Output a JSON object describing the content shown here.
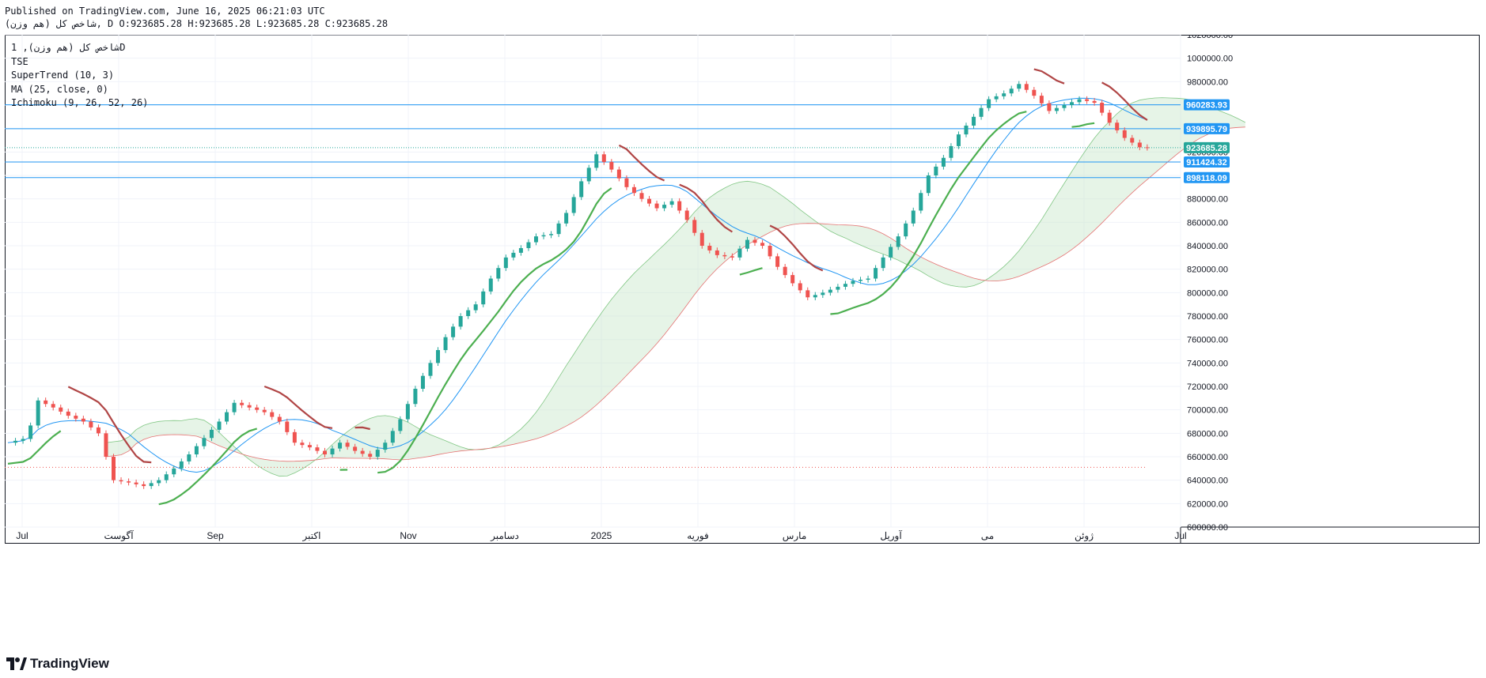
{
  "header": {
    "line1": "Published on TradingView.com, June 16, 2025 06:21:03 UTC",
    "line2": "شاخص کل (هم وزن), D O:923685.28 H:923685.28 L:923685.28 C:923685.28"
  },
  "legend": {
    "symbol": "شاخص کل (هم وزن), 1D",
    "exchange": "TSE",
    "indicator_1": "SuperTrend (10, 3)",
    "indicator_2": "MA (25, close, 0)",
    "indicator_3": "Ichimoku (9, 26, 52, 26)"
  },
  "footer": {
    "brand": "TradingView"
  },
  "colors": {
    "up": "#26a69a",
    "down": "#ef5350",
    "supertrend_up": "#4caf50",
    "supertrend_down": "#b04545",
    "ma": "#2196f3",
    "hline": "#2196f3",
    "cloud_bull": "#c8e6c9",
    "cloud_bear": "#ffcdd2",
    "current_price": "#26a69a"
  },
  "chart_data": {
    "type": "candlestick",
    "y_axis_ticks": [
      "1020000.00",
      "1000000.00",
      "980000.00",
      "960000.00",
      "940000.00",
      "920000.00",
      "900000.00",
      "880000.00",
      "860000.00",
      "840000.00",
      "820000.00",
      "800000.00",
      "780000.00",
      "760000.00",
      "740000.00",
      "720000.00",
      "700000.00",
      "680000.00",
      "660000.00",
      "640000.00",
      "620000.00",
      "600000.00"
    ],
    "ylim": [
      600000,
      1020000
    ],
    "x_axis_labels": [
      "Jul",
      "آگوست",
      "Sep",
      "اکتبر",
      "Nov",
      "دسامبر",
      "2025",
      "فوریه",
      "مارس",
      "آوریل",
      "می",
      "ژوئن",
      "Jul"
    ],
    "horizontal_lines": [
      {
        "value": 960283.93,
        "label": "960283.93"
      },
      {
        "value": 939895.79,
        "label": "939895.79"
      },
      {
        "value": 911424.32,
        "label": "911424.32"
      },
      {
        "value": 898118.09,
        "label": "898118.09"
      }
    ],
    "current_price": {
      "value": 923685.28,
      "label": "923685.28"
    },
    "prior_level": 651000,
    "closes": [
      [
        0,
        672000
      ],
      [
        5,
        676000
      ],
      [
        8,
        708000
      ],
      [
        12,
        702000
      ],
      [
        16,
        695000
      ],
      [
        20,
        690000
      ],
      [
        24,
        680000
      ],
      [
        28,
        640000
      ],
      [
        32,
        638000
      ],
      [
        36,
        635000
      ],
      [
        40,
        640000
      ],
      [
        44,
        650000
      ],
      [
        48,
        662000
      ],
      [
        52,
        676000
      ],
      [
        56,
        690000
      ],
      [
        60,
        706000
      ],
      [
        64,
        702000
      ],
      [
        68,
        698000
      ],
      [
        72,
        690000
      ],
      [
        76,
        672000
      ],
      [
        80,
        668000
      ],
      [
        84,
        662000
      ],
      [
        88,
        672000
      ],
      [
        92,
        665000
      ],
      [
        96,
        660000
      ],
      [
        100,
        672000
      ],
      [
        104,
        692000
      ],
      [
        108,
        718000
      ],
      [
        112,
        740000
      ],
      [
        116,
        762000
      ],
      [
        120,
        780000
      ],
      [
        124,
        790000
      ],
      [
        128,
        812000
      ],
      [
        132,
        830000
      ],
      [
        136,
        838000
      ],
      [
        140,
        848000
      ],
      [
        144,
        850000
      ],
      [
        148,
        868000
      ],
      [
        152,
        895000
      ],
      [
        156,
        918000
      ],
      [
        160,
        905000
      ],
      [
        164,
        890000
      ],
      [
        168,
        880000
      ],
      [
        172,
        872000
      ],
      [
        176,
        878000
      ],
      [
        180,
        862000
      ],
      [
        184,
        840000
      ],
      [
        188,
        832000
      ],
      [
        192,
        830000
      ],
      [
        196,
        845000
      ],
      [
        200,
        840000
      ],
      [
        204,
        822000
      ],
      [
        208,
        808000
      ],
      [
        212,
        796000
      ],
      [
        216,
        800000
      ],
      [
        220,
        805000
      ],
      [
        224,
        810000
      ],
      [
        228,
        812000
      ],
      [
        232,
        830000
      ],
      [
        236,
        848000
      ],
      [
        240,
        870000
      ],
      [
        244,
        900000
      ],
      [
        248,
        915000
      ],
      [
        252,
        935000
      ],
      [
        256,
        950000
      ],
      [
        260,
        965000
      ],
      [
        264,
        970000
      ],
      [
        268,
        978000
      ],
      [
        272,
        968000
      ],
      [
        276,
        955000
      ],
      [
        280,
        960000
      ],
      [
        284,
        965000
      ],
      [
        288,
        962000
      ],
      [
        292,
        945000
      ],
      [
        296,
        932000
      ],
      [
        300,
        924000
      ],
      [
        302,
        923685.28
      ]
    ],
    "days_visible": 310,
    "current_day": 302
  }
}
